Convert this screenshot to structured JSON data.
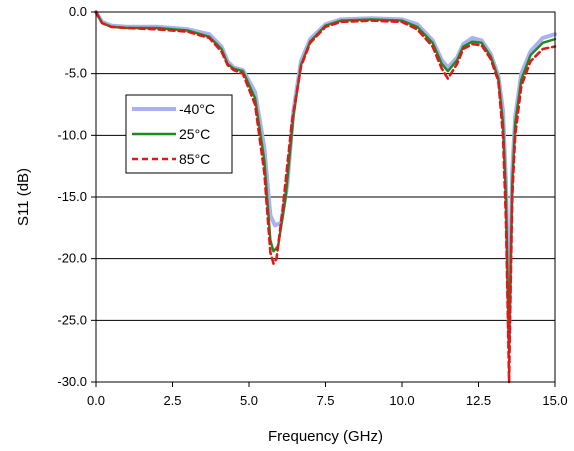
{
  "chart_data": {
    "type": "line",
    "title": "",
    "xlabel": "Frequency (GHz)",
    "ylabel": "S11 (dB)",
    "xlim": [
      0,
      15
    ],
    "ylim": [
      -30,
      0
    ],
    "grid": "horizontal",
    "legend_position": "left-middle",
    "x_ticks": [
      0,
      2.5,
      5,
      7.5,
      10,
      12.5,
      15
    ],
    "x_tick_labels": [
      "0.0",
      "2.5",
      "5.0",
      "7.5",
      "10.0",
      "12.5",
      "15.0"
    ],
    "y_ticks": [
      0,
      -5,
      -10,
      -15,
      -20,
      -25,
      -30
    ],
    "y_tick_labels": [
      "0.0",
      "-5.0",
      "-10.0",
      "-15.0",
      "-20.0",
      "-25.0",
      "-30.0"
    ],
    "series": [
      {
        "name": "-40°C",
        "color": "#aab0f0",
        "style": "solid-thick",
        "points": [
          [
            0,
            0
          ],
          [
            0.2,
            -0.8
          ],
          [
            0.5,
            -1.1
          ],
          [
            1,
            -1.2
          ],
          [
            2,
            -1.2
          ],
          [
            3,
            -1.4
          ],
          [
            3.7,
            -1.8
          ],
          [
            4.1,
            -2.8
          ],
          [
            4.3,
            -4
          ],
          [
            4.5,
            -4.5
          ],
          [
            4.8,
            -4.7
          ],
          [
            5.2,
            -6.5
          ],
          [
            5.5,
            -11
          ],
          [
            5.7,
            -16.5
          ],
          [
            5.85,
            -17.3
          ],
          [
            6.05,
            -17.1
          ],
          [
            6.25,
            -14
          ],
          [
            6.45,
            -8
          ],
          [
            6.7,
            -4
          ],
          [
            7,
            -2.2
          ],
          [
            7.5,
            -1
          ],
          [
            8,
            -0.6
          ],
          [
            9,
            -0.5
          ],
          [
            10,
            -0.6
          ],
          [
            10.5,
            -1
          ],
          [
            11,
            -2.3
          ],
          [
            11.3,
            -3.9
          ],
          [
            11.5,
            -4.5
          ],
          [
            11.8,
            -3.7
          ],
          [
            12,
            -2.6
          ],
          [
            12.3,
            -2.1
          ],
          [
            12.6,
            -2.3
          ],
          [
            12.9,
            -3.4
          ],
          [
            13.15,
            -5.2
          ],
          [
            13.3,
            -8
          ],
          [
            13.4,
            -14
          ],
          [
            13.47,
            -22
          ],
          [
            13.5,
            -26.5
          ],
          [
            13.53,
            -22
          ],
          [
            13.6,
            -13
          ],
          [
            13.7,
            -8.5
          ],
          [
            13.9,
            -5
          ],
          [
            14.2,
            -3.2
          ],
          [
            14.6,
            -2.1
          ],
          [
            15,
            -1.8
          ]
        ]
      },
      {
        "name": "25°C",
        "color": "#1e8a1e",
        "style": "solid",
        "points": [
          [
            0,
            0
          ],
          [
            0.2,
            -0.9
          ],
          [
            0.5,
            -1.2
          ],
          [
            1,
            -1.3
          ],
          [
            2,
            -1.3
          ],
          [
            3,
            -1.5
          ],
          [
            3.7,
            -2
          ],
          [
            4.1,
            -3
          ],
          [
            4.3,
            -4.2
          ],
          [
            4.5,
            -4.6
          ],
          [
            4.8,
            -4.8
          ],
          [
            5.2,
            -7
          ],
          [
            5.5,
            -12
          ],
          [
            5.7,
            -18.5
          ],
          [
            5.8,
            -19.4
          ],
          [
            5.95,
            -19
          ],
          [
            6.2,
            -15
          ],
          [
            6.45,
            -8.5
          ],
          [
            6.7,
            -4.3
          ],
          [
            7,
            -2.4
          ],
          [
            7.5,
            -1.1
          ],
          [
            8,
            -0.7
          ],
          [
            9,
            -0.6
          ],
          [
            10,
            -0.7
          ],
          [
            10.5,
            -1.2
          ],
          [
            11,
            -2.5
          ],
          [
            11.3,
            -4.2
          ],
          [
            11.5,
            -4.8
          ],
          [
            11.8,
            -3.9
          ],
          [
            12,
            -2.8
          ],
          [
            12.3,
            -2.4
          ],
          [
            12.6,
            -2.5
          ],
          [
            12.9,
            -3.6
          ],
          [
            13.15,
            -5.4
          ],
          [
            13.3,
            -9
          ],
          [
            13.4,
            -15
          ],
          [
            13.47,
            -24
          ],
          [
            13.5,
            -27.5
          ],
          [
            13.53,
            -23
          ],
          [
            13.6,
            -14
          ],
          [
            13.7,
            -9
          ],
          [
            13.9,
            -5.5
          ],
          [
            14.2,
            -3.5
          ],
          [
            14.6,
            -2.5
          ],
          [
            15,
            -2.2
          ]
        ]
      },
      {
        "name": "85°C",
        "color": "#e01818",
        "style": "dashed",
        "points": [
          [
            0,
            0
          ],
          [
            0.2,
            -0.9
          ],
          [
            0.5,
            -1.2
          ],
          [
            1,
            -1.3
          ],
          [
            2,
            -1.4
          ],
          [
            3,
            -1.6
          ],
          [
            3.7,
            -2.1
          ],
          [
            4.1,
            -3.2
          ],
          [
            4.3,
            -4.3
          ],
          [
            4.5,
            -4.7
          ],
          [
            4.8,
            -5
          ],
          [
            5.2,
            -7.5
          ],
          [
            5.5,
            -13
          ],
          [
            5.7,
            -19.5
          ],
          [
            5.8,
            -20.4
          ],
          [
            5.9,
            -20
          ],
          [
            6.1,
            -16
          ],
          [
            6.4,
            -9
          ],
          [
            6.7,
            -4.4
          ],
          [
            7,
            -2.5
          ],
          [
            7.5,
            -1.2
          ],
          [
            8,
            -0.8
          ],
          [
            9,
            -0.7
          ],
          [
            10,
            -0.8
          ],
          [
            10.5,
            -1.4
          ],
          [
            11,
            -2.8
          ],
          [
            11.3,
            -4.6
          ],
          [
            11.5,
            -5.4
          ],
          [
            11.8,
            -4.2
          ],
          [
            12,
            -3
          ],
          [
            12.3,
            -2.6
          ],
          [
            12.6,
            -2.7
          ],
          [
            12.9,
            -3.8
          ],
          [
            13.15,
            -5.6
          ],
          [
            13.3,
            -10
          ],
          [
            13.4,
            -17
          ],
          [
            13.47,
            -26
          ],
          [
            13.5,
            -30
          ],
          [
            13.53,
            -25
          ],
          [
            13.6,
            -15
          ],
          [
            13.7,
            -10
          ],
          [
            13.9,
            -6
          ],
          [
            14.2,
            -4
          ],
          [
            14.6,
            -3
          ],
          [
            15,
            -2.8
          ]
        ]
      }
    ]
  }
}
